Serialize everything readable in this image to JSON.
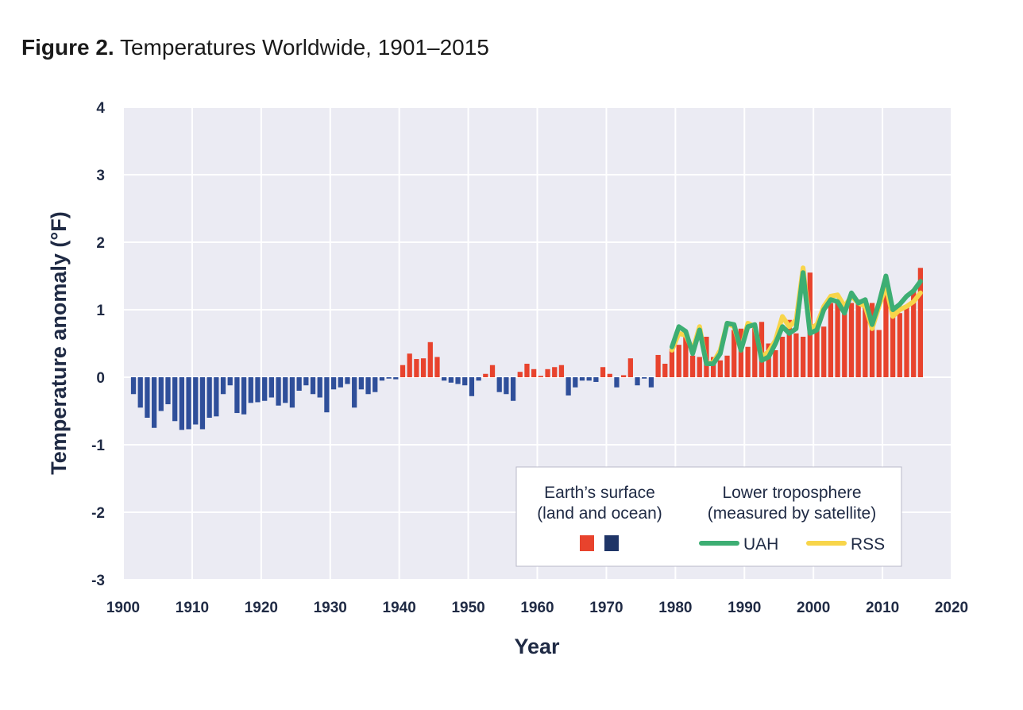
{
  "figure": {
    "title_lead": "Figure 2.",
    "title_rest": "Temperatures Worldwide, 1901–2015"
  },
  "colors": {
    "warm": "#e8432d",
    "cool": "#2f4f9a",
    "uah": "#3dae73",
    "rss": "#f8d54a",
    "plot_bg": "#ebebf3",
    "grid": "#ffffff",
    "text": "#1f2a44"
  },
  "chart_data": {
    "type": "bar",
    "xlabel": "Year",
    "ylabel": "Temperature anomaly (°F)",
    "xlim": [
      1900,
      2020
    ],
    "ylim": [
      -3,
      4
    ],
    "grid": true,
    "x_ticks": [
      1900,
      1910,
      1920,
      1930,
      1940,
      1950,
      1960,
      1970,
      1980,
      1990,
      2000,
      2010,
      2020
    ],
    "y_ticks": [
      -3,
      -2,
      -1,
      0,
      1,
      2,
      3,
      4
    ],
    "legend_position": "bottom-right",
    "legend": {
      "surface_header_1": "Earth’s surface",
      "surface_header_2": "(land and ocean)",
      "sat_header_1": "Lower troposphere",
      "sat_header_2": "(measured by satellite)",
      "uah_label": "UAH",
      "rss_label": "RSS"
    },
    "surface": {
      "start_year": 1901,
      "values": [
        -0.25,
        -0.45,
        -0.6,
        -0.75,
        -0.5,
        -0.4,
        -0.65,
        -0.78,
        -0.77,
        -0.7,
        -0.77,
        -0.6,
        -0.58,
        -0.25,
        -0.12,
        -0.53,
        -0.55,
        -0.38,
        -0.37,
        -0.35,
        -0.3,
        -0.42,
        -0.38,
        -0.45,
        -0.2,
        -0.12,
        -0.25,
        -0.3,
        -0.52,
        -0.18,
        -0.15,
        -0.1,
        -0.45,
        -0.18,
        -0.25,
        -0.22,
        -0.05,
        -0.02,
        -0.03,
        0.18,
        0.35,
        0.27,
        0.28,
        0.52,
        0.3,
        -0.05,
        -0.08,
        -0.1,
        -0.12,
        -0.28,
        -0.05,
        0.05,
        0.18,
        -0.22,
        -0.25,
        -0.35,
        0.08,
        0.2,
        0.12,
        0.02,
        0.12,
        0.15,
        0.18,
        -0.27,
        -0.15,
        -0.05,
        -0.05,
        -0.07,
        0.15,
        0.05,
        -0.15,
        0.03,
        0.28,
        -0.12,
        -0.02,
        -0.15,
        0.33,
        0.2,
        0.42,
        0.48,
        0.62,
        0.32,
        0.3,
        0.6,
        0.3,
        0.25,
        0.32,
        0.7,
        0.72,
        0.45,
        0.75,
        0.82,
        0.5,
        0.4,
        0.6,
        0.85,
        0.65,
        0.6,
        1.55,
        0.8,
        0.75,
        1.1,
        1.12,
        1.0,
        1.1,
        1.15,
        1.05,
        1.1,
        0.7,
        1.25,
        1.0,
        0.95,
        1.05,
        1.3,
        1.62
      ]
    },
    "uah": {
      "start_year": 1979,
      "values": [
        0.45,
        0.75,
        0.68,
        0.35,
        0.7,
        0.2,
        0.2,
        0.35,
        0.8,
        0.78,
        0.4,
        0.75,
        0.78,
        0.25,
        0.3,
        0.5,
        0.75,
        0.65,
        0.72,
        1.55,
        0.65,
        0.7,
        1.0,
        1.15,
        1.12,
        0.95,
        1.25,
        1.1,
        1.15,
        0.78,
        1.1,
        1.5,
        1.0,
        1.08,
        1.2,
        1.28,
        1.42
      ]
    },
    "rss": {
      "start_year": 1979,
      "values": [
        0.4,
        0.65,
        0.62,
        0.4,
        0.75,
        0.2,
        0.22,
        0.4,
        0.8,
        0.75,
        0.4,
        0.8,
        0.75,
        0.3,
        0.38,
        0.55,
        0.9,
        0.75,
        0.85,
        1.62,
        0.72,
        0.78,
        1.05,
        1.2,
        1.22,
        1.05,
        1.2,
        1.1,
        1.05,
        0.72,
        1.05,
        1.35,
        0.9,
        1.0,
        1.05,
        1.12,
        1.25
      ]
    }
  }
}
